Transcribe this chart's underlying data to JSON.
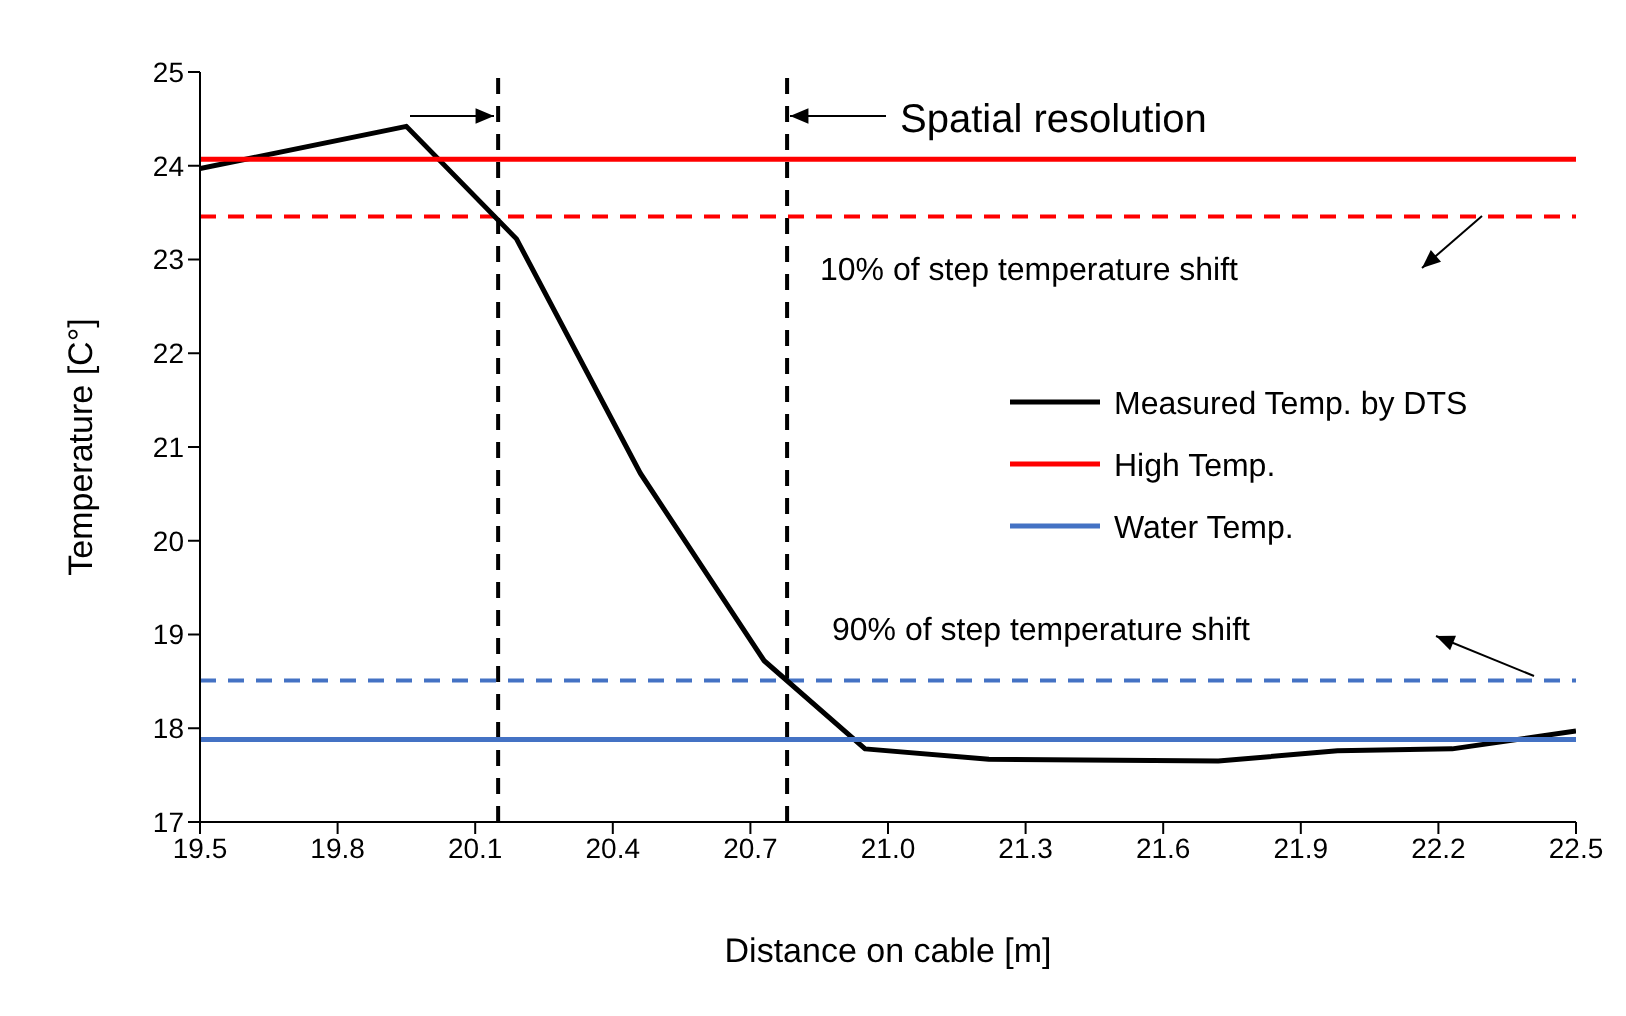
{
  "chart_data": {
    "type": "line",
    "xlabel": "Distance on cable [m]",
    "ylabel": "Temperature [C°]",
    "xlim": [
      19.5,
      22.5
    ],
    "xticks": [
      19.5,
      19.8,
      20.1,
      20.4,
      20.7,
      {
        "value": 21,
        "label": "21.0"
      },
      21.3,
      21.6,
      21.9,
      22.2,
      22.5
    ],
    "ylim": [
      17,
      25
    ],
    "yticks": [
      17,
      18,
      19,
      20,
      21,
      22,
      23,
      24,
      25
    ],
    "legend": "right",
    "marker": "none",
    "line_style": "solid",
    "series": [
      {
        "name": "Measured Temp. by DTS",
        "color": "#000000",
        "x": [
          19.5,
          19.95,
          20.19,
          20.46,
          20.73,
          20.95,
          21.22,
          21.72,
          21.98,
          22.23,
          22.5
        ],
        "values": [
          23.97,
          24.42,
          23.22,
          20.72,
          18.72,
          17.78,
          17.67,
          17.65,
          17.76,
          17.78,
          17.97
        ]
      },
      {
        "name": "High Temp.",
        "color": "#ff0000",
        "x": [
          19.5,
          22.5
        ],
        "values": [
          24.07,
          24.07
        ]
      },
      {
        "name": "Water Temp.",
        "color": "#4472c4",
        "x": [
          19.5,
          22.5
        ],
        "values": [
          17.88,
          17.88
        ]
      }
    ],
    "ref_lines": [
      {
        "axis": "x",
        "value": 20.15,
        "color": "#000000",
        "line_style": "dashed"
      },
      {
        "axis": "x",
        "value": 20.78,
        "color": "#000000",
        "line_style": "dashed"
      },
      {
        "axis": "y",
        "value": 23.46,
        "color": "#ff0000",
        "line_style": "dashed"
      },
      {
        "axis": "y",
        "value": 18.51,
        "color": "#4472c4",
        "line_style": "dashed"
      }
    ],
    "annotations": [
      "Spatial resolution",
      "10% of step temperature shift",
      "90% of step temperature shift"
    ]
  }
}
